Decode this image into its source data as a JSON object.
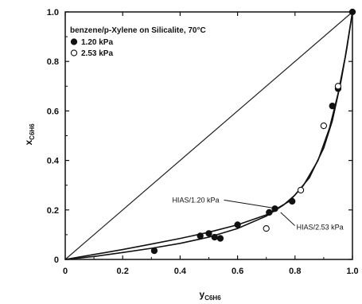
{
  "chart_data": {
    "type": "scatter",
    "title": "",
    "legend_title": "benzene/p-Xylene on Silicalite, 70°C",
    "legend_position": "top-left",
    "xlabel": {
      "main": "y",
      "sub": "C6H6"
    },
    "ylabel": {
      "main": "x",
      "sub": "C6H6"
    },
    "xlim": [
      0,
      1
    ],
    "ylim": [
      0,
      1
    ],
    "xticks": [
      "0",
      "0.2",
      "0.4",
      "0.6",
      "0.8",
      "1.0"
    ],
    "yticks": [
      "0",
      "0.2",
      "0.4",
      "0.6",
      "0.8",
      "1.0"
    ],
    "grid": false,
    "series": [
      {
        "name": "1.20 kPa",
        "marker": "filled-circle",
        "points": [
          [
            0.31,
            0.035
          ],
          [
            0.47,
            0.095
          ],
          [
            0.5,
            0.105
          ],
          [
            0.52,
            0.09
          ],
          [
            0.54,
            0.085
          ],
          [
            0.6,
            0.14
          ],
          [
            0.71,
            0.19
          ],
          [
            0.73,
            0.205
          ],
          [
            0.79,
            0.235
          ],
          [
            0.93,
            0.62
          ],
          [
            0.95,
            0.69
          ],
          [
            1.0,
            1.0
          ]
        ]
      },
      {
        "name": "2.53 kPa",
        "marker": "open-circle",
        "points": [
          [
            0.7,
            0.125
          ],
          [
            0.82,
            0.28
          ],
          [
            0.9,
            0.54
          ],
          [
            0.95,
            0.7
          ]
        ]
      }
    ],
    "curves": [
      {
        "label": "HIAS/1.20 kPa",
        "points": [
          [
            0,
            0
          ],
          [
            0.1,
            0.012
          ],
          [
            0.2,
            0.028
          ],
          [
            0.3,
            0.045
          ],
          [
            0.4,
            0.065
          ],
          [
            0.5,
            0.09
          ],
          [
            0.6,
            0.125
          ],
          [
            0.7,
            0.175
          ],
          [
            0.76,
            0.22
          ],
          [
            0.8,
            0.26
          ],
          [
            0.85,
            0.33
          ],
          [
            0.9,
            0.45
          ],
          [
            0.93,
            0.56
          ],
          [
            0.96,
            0.72
          ],
          [
            0.98,
            0.85
          ],
          [
            1.0,
            1.0
          ]
        ]
      },
      {
        "label": "HIAS/2.53 kPa",
        "points": [
          [
            0,
            0
          ],
          [
            0.1,
            0.02
          ],
          [
            0.2,
            0.04
          ],
          [
            0.3,
            0.062
          ],
          [
            0.4,
            0.085
          ],
          [
            0.5,
            0.11
          ],
          [
            0.6,
            0.14
          ],
          [
            0.7,
            0.18
          ],
          [
            0.78,
            0.235
          ],
          [
            0.83,
            0.3
          ],
          [
            0.88,
            0.4
          ],
          [
            0.92,
            0.53
          ],
          [
            0.95,
            0.67
          ],
          [
            0.975,
            0.82
          ],
          [
            1.0,
            1.0
          ]
        ]
      }
    ],
    "reference_line": {
      "points": [
        [
          0,
          0
        ],
        [
          1,
          1
        ]
      ]
    },
    "annotations": [
      {
        "text": "HIAS/1.20 kPa",
        "points_to": [
          0.74,
          0.205
        ],
        "anchor": "left"
      },
      {
        "text": "HIAS/2.53 kPa",
        "points_to": [
          0.75,
          0.19
        ],
        "anchor": "right"
      }
    ]
  }
}
